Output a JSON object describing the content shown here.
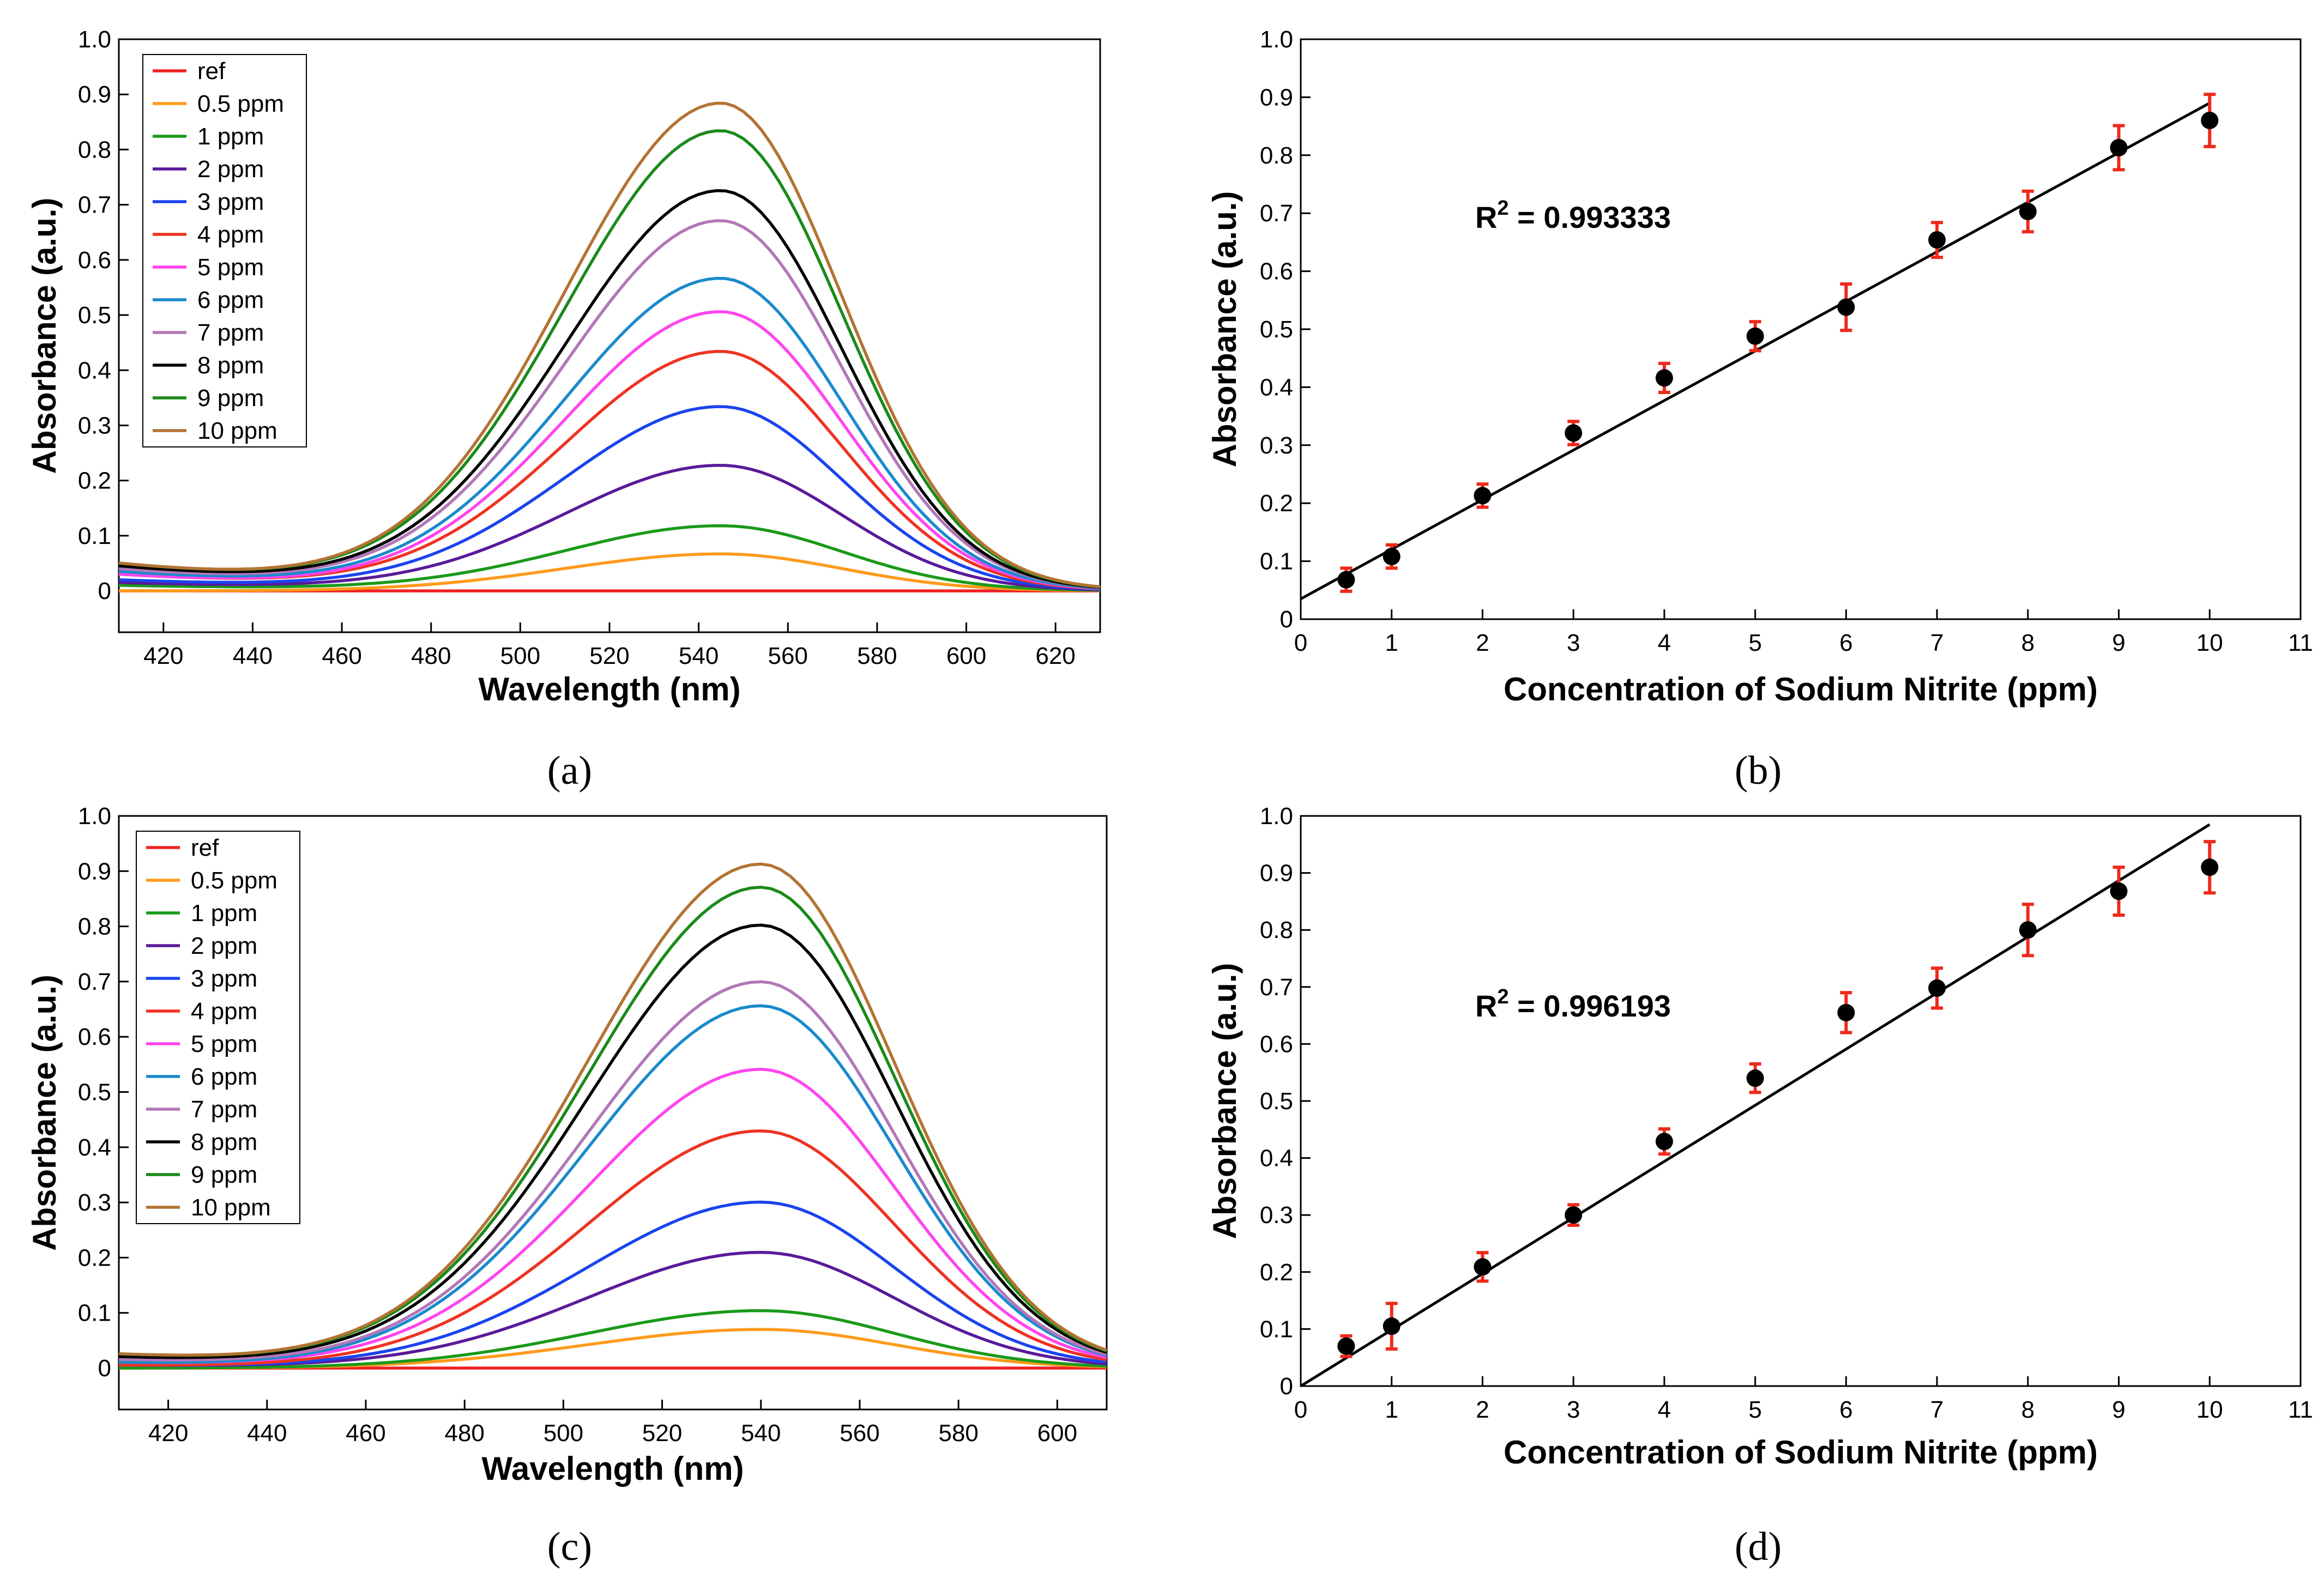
{
  "figure": {
    "panel_labels": [
      "(a)",
      "(b)",
      "(c)",
      "(d)"
    ]
  },
  "chart_data": [
    {
      "id": "a",
      "type": "line",
      "title": "",
      "xlabel": "Wavelength (nm)",
      "ylabel": "Absorbance (a.u.)",
      "xlim": [
        410,
        630
      ],
      "ylim": [
        -0.075,
        1.0
      ],
      "xticks": [
        420,
        440,
        460,
        480,
        500,
        520,
        540,
        560,
        580,
        600,
        620
      ],
      "yticks": [
        0,
        0.1,
        0.2,
        0.3,
        0.4,
        0.5,
        0.6,
        0.7,
        0.8,
        0.9,
        1.0
      ],
      "ytick_labels": [
        "0",
        "0.1",
        "0.2",
        "0.3",
        "0.4",
        "0.5",
        "0.6",
        "0.7",
        "0.8",
        "0.9",
        "1.0"
      ],
      "grid": false,
      "legend": "top-left",
      "peak_center": 545,
      "series": [
        {
          "name": "ref",
          "color": "#ee2222",
          "peak": 0.0,
          "base": 0.0
        },
        {
          "name": "0.5 ppm",
          "color": "#ff9a1a",
          "peak": 0.067,
          "base": 0.0
        },
        {
          "name": "1 ppm",
          "color": "#1a9a1a",
          "peak": 0.117,
          "base": 0.01
        },
        {
          "name": "2 ppm",
          "color": "#5a1a9a",
          "peak": 0.226,
          "base": 0.015
        },
        {
          "name": "3 ppm",
          "color": "#1a44ee",
          "peak": 0.332,
          "base": 0.02
        },
        {
          "name": "4 ppm",
          "color": "#ee3322",
          "peak": 0.431,
          "base": 0.03
        },
        {
          "name": "5 ppm",
          "color": "#ff44ee",
          "peak": 0.503,
          "base": 0.03
        },
        {
          "name": "6 ppm",
          "color": "#1a8acc",
          "peak": 0.563,
          "base": 0.035
        },
        {
          "name": "7 ppm",
          "color": "#b277b7",
          "peak": 0.667,
          "base": 0.04
        },
        {
          "name": "8 ppm",
          "color": "#000000",
          "peak": 0.721,
          "base": 0.045
        },
        {
          "name": "9 ppm",
          "color": "#1a8a1a",
          "peak": 0.829,
          "base": 0.05
        },
        {
          "name": "10 ppm",
          "color": "#b37333",
          "peak": 0.879,
          "base": 0.05
        }
      ]
    },
    {
      "id": "b",
      "type": "scatter",
      "title": "",
      "xlabel": "Concentration of Sodium Nitrite (ppm)",
      "ylabel": "Absorbance (a.u.)",
      "xlim": [
        0,
        11
      ],
      "ylim": [
        0,
        1.0
      ],
      "xticks": [
        0,
        1,
        2,
        3,
        4,
        5,
        6,
        7,
        8,
        9,
        10,
        11
      ],
      "yticks": [
        0,
        0.1,
        0.2,
        0.3,
        0.4,
        0.5,
        0.6,
        0.7,
        0.8,
        0.9,
        1.0
      ],
      "ytick_labels": [
        "0",
        "0.1",
        "0.2",
        "0.3",
        "0.4",
        "0.5",
        "0.6",
        "0.7",
        "0.8",
        "0.9",
        "1.0"
      ],
      "grid": false,
      "annotation": {
        "prefix": "R",
        "sup": "2",
        "value": " = 0.993333"
      },
      "fit": {
        "x": [
          0,
          10
        ],
        "y": [
          0.035,
          0.89
        ]
      },
      "x": [
        0.5,
        1,
        2,
        3,
        4,
        5,
        6,
        7,
        8,
        9,
        10
      ],
      "y": [
        0.068,
        0.108,
        0.213,
        0.321,
        0.416,
        0.488,
        0.538,
        0.654,
        0.703,
        0.813,
        0.86
      ],
      "err": [
        0.02,
        0.02,
        0.02,
        0.02,
        0.025,
        0.025,
        0.04,
        0.03,
        0.035,
        0.038,
        0.045
      ]
    },
    {
      "id": "c",
      "type": "line",
      "title": "",
      "xlabel": "Wavelength (nm)",
      "ylabel": "Absorbance (a.u.)",
      "xlim": [
        410,
        610
      ],
      "ylim": [
        -0.075,
        1.0
      ],
      "xticks": [
        420,
        440,
        460,
        480,
        500,
        520,
        540,
        560,
        580,
        600
      ],
      "yticks": [
        0,
        0.1,
        0.2,
        0.3,
        0.4,
        0.5,
        0.6,
        0.7,
        0.8,
        0.9,
        1.0
      ],
      "ytick_labels": [
        "0",
        "0.1",
        "0.2",
        "0.3",
        "0.4",
        "0.5",
        "0.6",
        "0.7",
        "0.8",
        "0.9",
        "1.0"
      ],
      "grid": false,
      "legend": "top-left",
      "peak_center": 540,
      "series": [
        {
          "name": "ref",
          "color": "#ee2222",
          "peak": 0.0,
          "base": 0.0
        },
        {
          "name": "0.5 ppm",
          "color": "#ff9a1a",
          "peak": 0.07,
          "base": 0.0
        },
        {
          "name": "1 ppm",
          "color": "#1a9a1a",
          "peak": 0.104,
          "base": 0.0
        },
        {
          "name": "2 ppm",
          "color": "#5a1a9a",
          "peak": 0.209,
          "base": 0.005
        },
        {
          "name": "3 ppm",
          "color": "#1a44ee",
          "peak": 0.3,
          "base": 0.005
        },
        {
          "name": "4 ppm",
          "color": "#ee3322",
          "peak": 0.429,
          "base": 0.005
        },
        {
          "name": "5 ppm",
          "color": "#ff44ee",
          "peak": 0.54,
          "base": 0.01
        },
        {
          "name": "6 ppm",
          "color": "#1a8acc",
          "peak": 0.655,
          "base": 0.01
        },
        {
          "name": "7 ppm",
          "color": "#b277b7",
          "peak": 0.698,
          "base": 0.015
        },
        {
          "name": "8 ppm",
          "color": "#000000",
          "peak": 0.8,
          "base": 0.02
        },
        {
          "name": "9 ppm",
          "color": "#1a8a1a",
          "peak": 0.868,
          "base": 0.025
        },
        {
          "name": "10 ppm",
          "color": "#b37333",
          "peak": 0.91,
          "base": 0.025
        }
      ]
    },
    {
      "id": "d",
      "type": "scatter",
      "title": "",
      "xlabel": "Concentration of Sodium Nitrite (ppm)",
      "ylabel": "Absorbance (a.u.)",
      "xlim": [
        0,
        11
      ],
      "ylim": [
        0,
        1.0
      ],
      "xticks": [
        0,
        1,
        2,
        3,
        4,
        5,
        6,
        7,
        8,
        9,
        10,
        11
      ],
      "yticks": [
        0,
        0.1,
        0.2,
        0.3,
        0.4,
        0.5,
        0.6,
        0.7,
        0.8,
        0.9,
        1.0
      ],
      "ytick_labels": [
        "0",
        "0.1",
        "0.2",
        "0.3",
        "0.4",
        "0.5",
        "0.6",
        "0.7",
        "0.8",
        "0.9",
        "1.0"
      ],
      "grid": false,
      "annotation": {
        "prefix": "R",
        "sup": "2",
        "value": " = 0.996193"
      },
      "fit": {
        "x": [
          0,
          10
        ],
        "y": [
          0.0,
          0.985
        ]
      },
      "x": [
        0.5,
        1,
        2,
        3,
        4,
        5,
        6,
        7,
        8,
        9,
        10
      ],
      "y": [
        0.07,
        0.105,
        0.209,
        0.3,
        0.429,
        0.54,
        0.655,
        0.698,
        0.8,
        0.868,
        0.91
      ],
      "err": [
        0.018,
        0.04,
        0.025,
        0.018,
        0.022,
        0.025,
        0.035,
        0.035,
        0.045,
        0.042,
        0.045
      ]
    }
  ]
}
